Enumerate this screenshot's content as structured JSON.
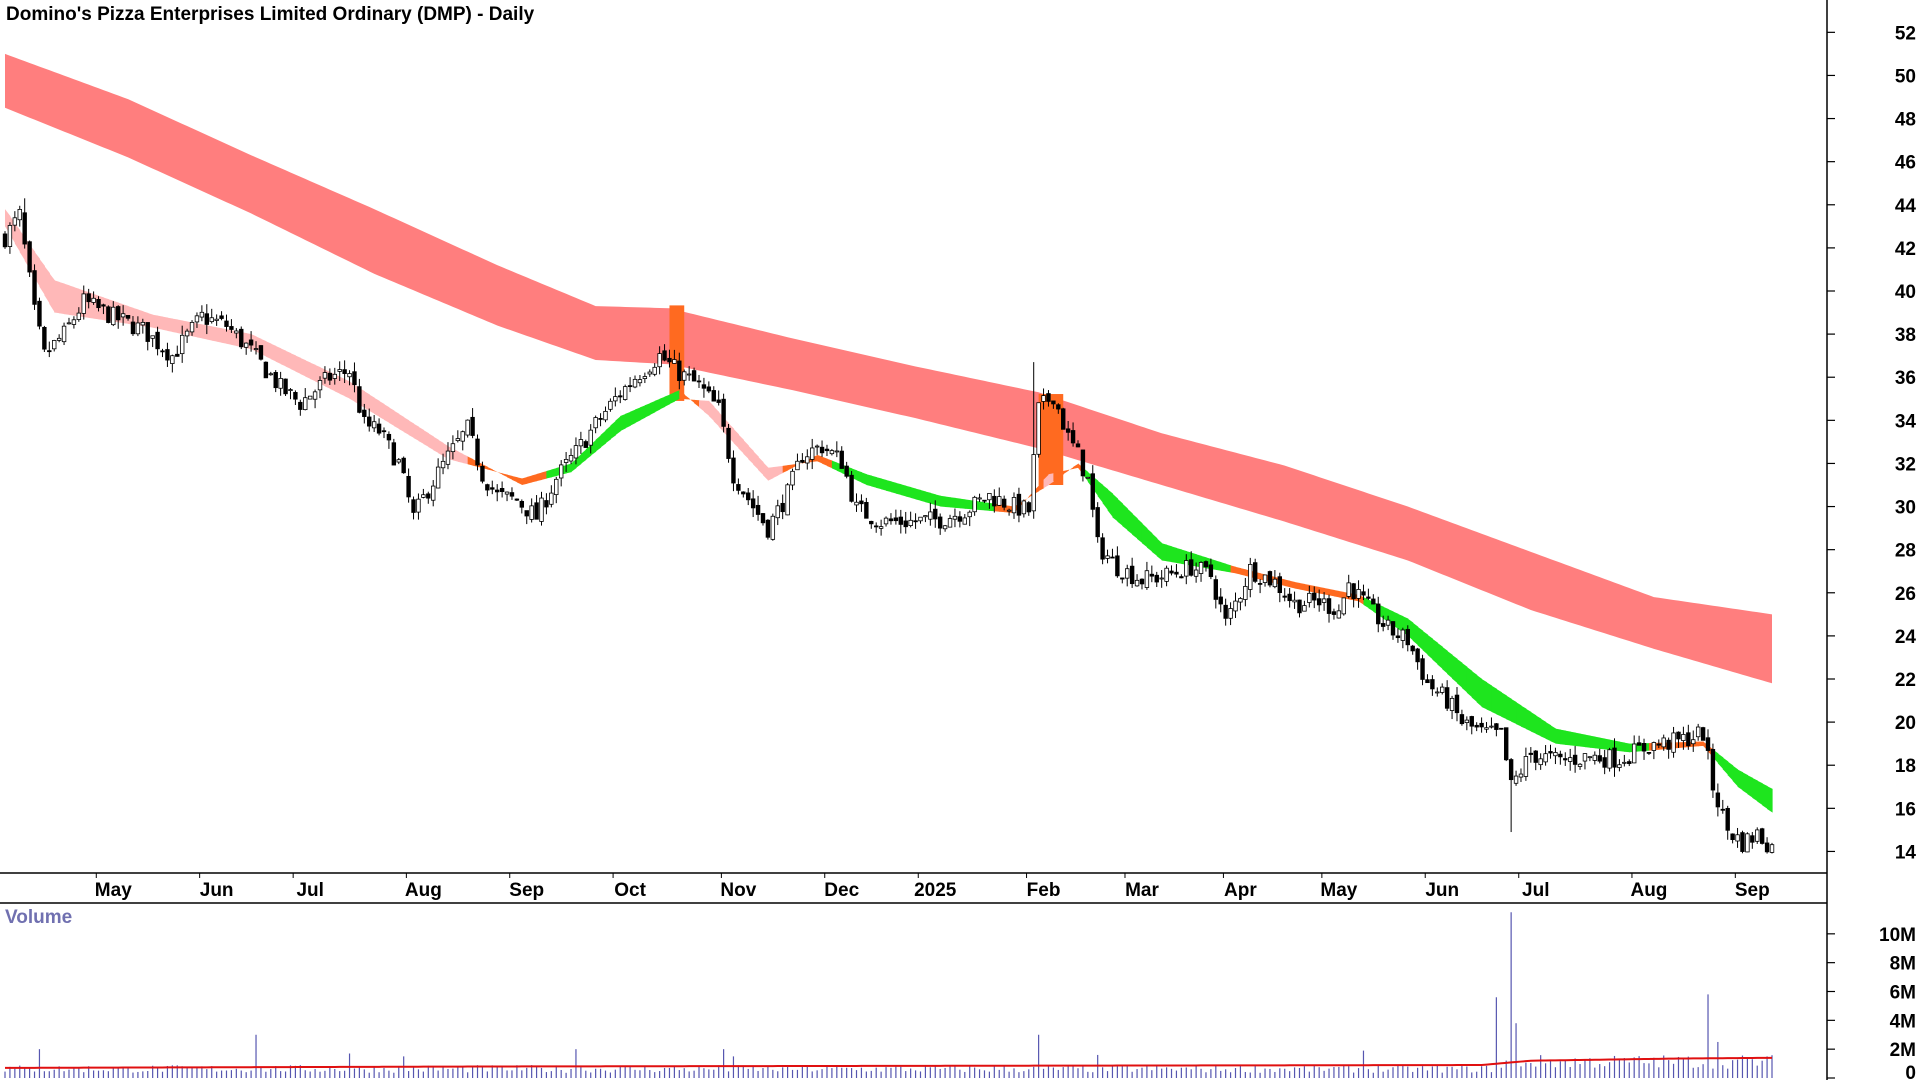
{
  "chart_data": {
    "type": "candlestick",
    "title": "Domino's Pizza Enterprises Limited Ordinary (DMP) - Daily",
    "interval": "Daily",
    "price_axis": {
      "ylim": [
        13,
        53.5
      ],
      "ticks": [
        14,
        16,
        18,
        20,
        22,
        24,
        26,
        28,
        30,
        32,
        34,
        36,
        38,
        40,
        42,
        44,
        46,
        48,
        50,
        52
      ],
      "side": "right"
    },
    "x_axis": {
      "labels": [
        "May",
        "Jun",
        "Jul",
        "Aug",
        "Sep",
        "Oct",
        "Nov",
        "Dec",
        "2025",
        "Feb",
        "Mar",
        "Apr",
        "May",
        "Jun",
        "Jul",
        "Aug",
        "Sep"
      ],
      "label_days": [
        22,
        43,
        62,
        85,
        106,
        127,
        149,
        170,
        189,
        211,
        231,
        251,
        271,
        292,
        311,
        334,
        355
      ]
    },
    "price_anchors": [
      [
        0,
        42.5
      ],
      [
        3,
        43.5
      ],
      [
        6,
        39.0
      ],
      [
        8,
        37.0
      ],
      [
        12,
        38.0
      ],
      [
        16,
        39.5
      ],
      [
        22,
        38.8
      ],
      [
        28,
        38.2
      ],
      [
        34,
        37.0
      ],
      [
        40,
        38.8
      ],
      [
        45,
        38.4
      ],
      [
        50,
        37.2
      ],
      [
        56,
        35.5
      ],
      [
        60,
        34.8
      ],
      [
        66,
        36.0
      ],
      [
        70,
        36.3
      ],
      [
        73,
        33.8
      ],
      [
        76,
        33.5
      ],
      [
        80,
        32.0
      ],
      [
        83,
        29.5
      ],
      [
        86,
        30.8
      ],
      [
        90,
        32.3
      ],
      [
        94,
        33.6
      ],
      [
        97,
        31.5
      ],
      [
        100,
        30.5
      ],
      [
        104,
        30.3
      ],
      [
        108,
        29.5
      ],
      [
        112,
        31.3
      ],
      [
        116,
        32.5
      ],
      [
        120,
        33.8
      ],
      [
        124,
        35.0
      ],
      [
        128,
        36.0
      ],
      [
        133,
        37.0
      ],
      [
        137,
        36.2
      ],
      [
        141,
        35.6
      ],
      [
        145,
        34.5
      ],
      [
        148,
        31.5
      ],
      [
        152,
        30.0
      ],
      [
        155,
        29.0
      ],
      [
        159,
        30.6
      ],
      [
        162,
        32.4
      ],
      [
        166,
        32.8
      ],
      [
        170,
        32.1
      ],
      [
        173,
        29.9
      ],
      [
        178,
        29.3
      ],
      [
        184,
        29.3
      ],
      [
        190,
        29.4
      ],
      [
        195,
        29.8
      ],
      [
        200,
        30.5
      ],
      [
        205,
        30.0
      ],
      [
        208,
        29.8
      ],
      [
        210,
        34.5
      ],
      [
        213,
        35.2
      ],
      [
        216,
        33.2
      ],
      [
        218,
        32.4
      ],
      [
        220,
        31.2
      ],
      [
        222,
        28.2
      ],
      [
        226,
        27.2
      ],
      [
        231,
        26.6
      ],
      [
        236,
        26.8
      ],
      [
        241,
        27.2
      ],
      [
        245,
        26.8
      ],
      [
        248,
        24.6
      ],
      [
        251,
        26.0
      ],
      [
        253,
        27.1
      ],
      [
        258,
        26.5
      ],
      [
        262,
        25.5
      ],
      [
        267,
        25.6
      ],
      [
        271,
        25.2
      ],
      [
        273,
        26.4
      ],
      [
        277,
        25.3
      ],
      [
        281,
        24.3
      ],
      [
        285,
        23.8
      ],
      [
        289,
        21.8
      ],
      [
        293,
        21.0
      ],
      [
        296,
        20.0
      ],
      [
        300,
        19.5
      ],
      [
        304,
        19.4
      ],
      [
        306,
        17.0
      ],
      [
        310,
        18.5
      ],
      [
        316,
        18.2
      ],
      [
        322,
        18.4
      ],
      [
        328,
        18.3
      ],
      [
        334,
        18.9
      ],
      [
        340,
        19.1
      ],
      [
        345,
        19.5
      ],
      [
        347,
        17.0
      ],
      [
        350,
        15.0
      ],
      [
        353,
        14.4
      ],
      [
        356,
        14.8
      ],
      [
        359,
        14.2
      ]
    ],
    "ma_band_fast": {
      "name": "short-term MA band",
      "points": [
        [
          0,
          43.8,
          43.0
        ],
        [
          10,
          40.5,
          39.0
        ],
        [
          30,
          38.9,
          38.3
        ],
        [
          50,
          38.0,
          37.3
        ],
        [
          70,
          35.8,
          35.0
        ],
        [
          90,
          32.8,
          32.2
        ],
        [
          105,
          31.0,
          31.3
        ],
        [
          115,
          31.6,
          32.0
        ],
        [
          125,
          33.5,
          34.2
        ],
        [
          137,
          35.0,
          35.4
        ],
        [
          143,
          34.9,
          34.2
        ],
        [
          155,
          31.8,
          31.2
        ],
        [
          165,
          32.1,
          32.4
        ],
        [
          175,
          31.0,
          31.5
        ],
        [
          190,
          30.0,
          30.5
        ],
        [
          205,
          29.7,
          30.0
        ],
        [
          212,
          31.5,
          31.0
        ],
        [
          218,
          31.8,
          32.0
        ],
        [
          225,
          29.5,
          30.6
        ],
        [
          235,
          27.5,
          28.3
        ],
        [
          250,
          26.9,
          27.2
        ],
        [
          262,
          26.2,
          26.5
        ],
        [
          275,
          25.6,
          25.9
        ],
        [
          285,
          24.0,
          24.8
        ],
        [
          300,
          20.7,
          22.0
        ],
        [
          315,
          19.0,
          19.7
        ],
        [
          330,
          18.6,
          19.0
        ],
        [
          345,
          18.9,
          19.1
        ],
        [
          352,
          17.0,
          17.8
        ],
        [
          359,
          15.8,
          16.9
        ]
      ]
    },
    "ma_band_slow": {
      "name": "long-term MA band",
      "points": [
        [
          0,
          51.0,
          48.5
        ],
        [
          25,
          48.9,
          46.2
        ],
        [
          50,
          46.3,
          43.6
        ],
        [
          75,
          43.8,
          40.8
        ],
        [
          100,
          41.2,
          38.4
        ],
        [
          120,
          39.3,
          36.8
        ],
        [
          135,
          39.2,
          36.6
        ],
        [
          160,
          37.8,
          35.4
        ],
        [
          185,
          36.5,
          34.1
        ],
        [
          210,
          35.3,
          32.7
        ],
        [
          235,
          33.4,
          31.0
        ],
        [
          260,
          31.9,
          29.3
        ],
        [
          285,
          30.0,
          27.5
        ],
        [
          310,
          27.9,
          25.2
        ],
        [
          335,
          25.8,
          23.4
        ],
        [
          359,
          25.0,
          21.8
        ]
      ]
    },
    "volume": {
      "label": "Volume",
      "ylim": [
        0,
        12000000
      ],
      "ticks": [
        0,
        2000000,
        4000000,
        6000000,
        8000000,
        10000000
      ],
      "tick_labels": [
        "0",
        "2M",
        "4M",
        "6M",
        "8M",
        "10M"
      ],
      "baseline_volume": 600000,
      "spikes": [
        [
          7,
          2000000
        ],
        [
          51,
          3000000
        ],
        [
          70,
          1700000
        ],
        [
          81,
          1500000
        ],
        [
          116,
          2000000
        ],
        [
          146,
          2000000
        ],
        [
          148,
          1500000
        ],
        [
          210,
          3000000
        ],
        [
          222,
          1600000
        ],
        [
          276,
          1900000
        ],
        [
          303,
          5600000
        ],
        [
          306,
          11500000
        ],
        [
          307,
          3800000
        ],
        [
          346,
          5800000
        ],
        [
          348,
          2500000
        ]
      ],
      "ma_points": [
        [
          0,
          700000
        ],
        [
          100,
          800000
        ],
        [
          200,
          850000
        ],
        [
          300,
          900000
        ],
        [
          310,
          1200000
        ],
        [
          340,
          1350000
        ],
        [
          359,
          1400000
        ]
      ]
    },
    "colors": {
      "slow_band": "#ff7e7e",
      "fast_band_bearish": "#ffb8b8",
      "fast_band_bullish": "#1ee51e",
      "crossover": "#ff6a20",
      "candle_up_fill": "#ffffff",
      "candle_down_fill": "#000000",
      "volume_bars": "#5656b0",
      "volume_ma": "#e01010"
    }
  }
}
